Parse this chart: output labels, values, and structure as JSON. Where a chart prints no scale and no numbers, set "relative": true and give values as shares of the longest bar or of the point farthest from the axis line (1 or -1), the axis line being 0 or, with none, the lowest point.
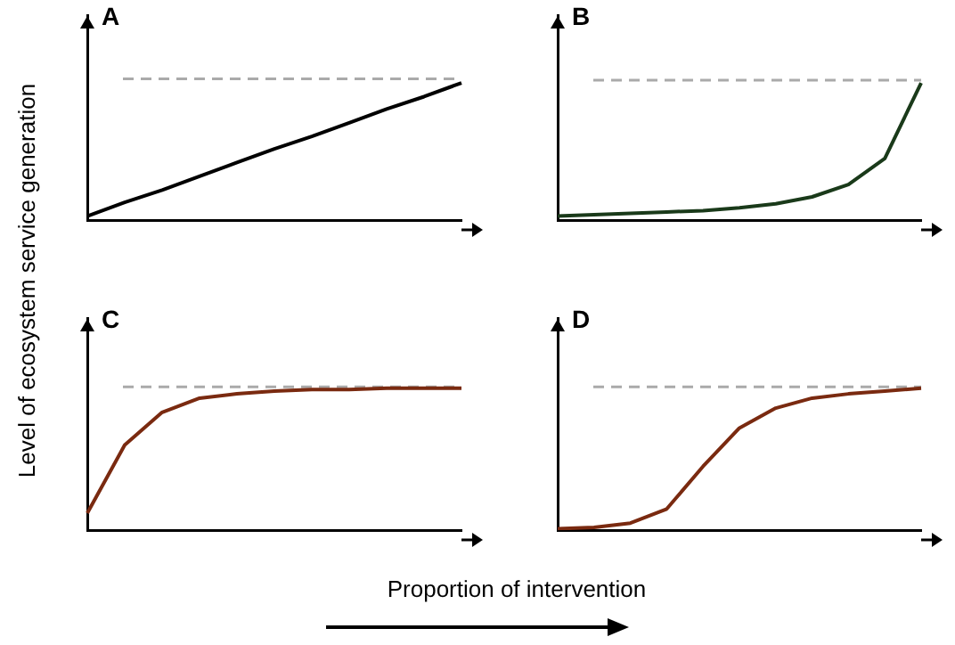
{
  "chart_data": [
    {
      "type": "line",
      "title": "A",
      "ylabel": "Level of ecosystem service generation",
      "relative": true,
      "categories": [
        null,
        null,
        null,
        null,
        null,
        null,
        null,
        null,
        null,
        null,
        null
      ],
      "series": [
        {
          "color": "#000000",
          "values": [
            0.03,
            0.13,
            0.22,
            0.32,
            0.42,
            0.52,
            0.61,
            0.71,
            0.81,
            0.9,
            1.0
          ]
        }
      ],
      "ref_lines": [
        {
          "axis": "y",
          "value": 1.03,
          "color": "#aaaaaa",
          "line_style": "dashed"
        }
      ],
      "grid": false,
      "legend": false,
      "marker": "none"
    },
    {
      "type": "line",
      "title": "B",
      "relative": true,
      "categories": [
        null,
        null,
        null,
        null,
        null,
        null,
        null,
        null,
        null,
        null,
        null
      ],
      "series": [
        {
          "color": "#1a3a1a",
          "values": [
            0.03,
            0.04,
            0.05,
            0.06,
            0.07,
            0.09,
            0.12,
            0.17,
            0.26,
            0.45,
            1.0
          ]
        }
      ],
      "ref_lines": [
        {
          "axis": "y",
          "value": 1.02,
          "color": "#aaaaaa",
          "line_style": "dashed"
        }
      ],
      "grid": false,
      "legend": false,
      "marker": "none"
    },
    {
      "type": "line",
      "title": "C",
      "relative": true,
      "categories": [
        null,
        null,
        null,
        null,
        null,
        null,
        null,
        null,
        null,
        null,
        null
      ],
      "series": [
        {
          "color": "#7a2a10",
          "values": [
            0.12,
            0.6,
            0.83,
            0.93,
            0.96,
            0.98,
            0.99,
            0.99,
            1.0,
            1.0,
            1.0
          ]
        }
      ],
      "ref_lines": [
        {
          "axis": "y",
          "value": 1.01,
          "color": "#aaaaaa",
          "line_style": "dashed"
        }
      ],
      "grid": false,
      "legend": false,
      "marker": "none"
    },
    {
      "type": "line",
      "title": "D",
      "xlabel": "Proportion of intervention",
      "relative": true,
      "categories": [
        null,
        null,
        null,
        null,
        null,
        null,
        null,
        null,
        null,
        null,
        null
      ],
      "series": [
        {
          "color": "#7a2a10",
          "values": [
            0.01,
            0.02,
            0.05,
            0.15,
            0.45,
            0.72,
            0.86,
            0.93,
            0.96,
            0.98,
            1.0
          ]
        }
      ],
      "ref_lines": [
        {
          "axis": "y",
          "value": 1.01,
          "color": "#aaaaaa",
          "line_style": "dashed"
        }
      ],
      "grid": false,
      "legend": false,
      "marker": "none"
    }
  ]
}
